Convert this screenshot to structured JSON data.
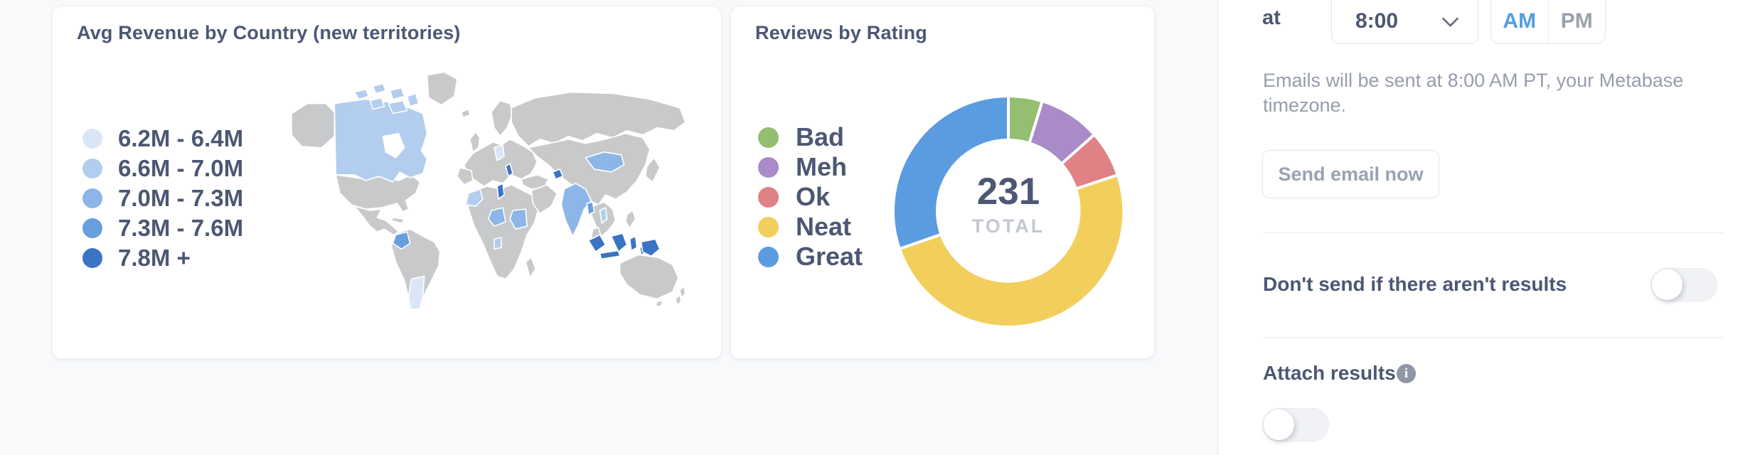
{
  "map_card": {
    "title": "Avg Revenue by Country (new territories)",
    "legend": [
      {
        "label": "6.2M - 6.4M",
        "color": "#D9E6F6"
      },
      {
        "label": "6.6M - 7.0M",
        "color": "#B2CDEE"
      },
      {
        "label": "7.0M - 7.3M",
        "color": "#8DB6E8"
      },
      {
        "label": "7.3M - 7.6M",
        "color": "#679EDE"
      },
      {
        "label": "7.8M +",
        "color": "#3B74C4"
      }
    ],
    "base_land_color": "#C7C9CB",
    "country_bins": {
      "canada": 1,
      "argentina": 0,
      "colombia": 3,
      "germany": 0,
      "croatia": 4,
      "azerbaijan": 4,
      "morocco": 1,
      "tunisia": 4,
      "niger": 2,
      "sudan": 2,
      "gabon": 1,
      "mongolia": 2,
      "india": 2,
      "bangladesh": 3,
      "laos": 1,
      "indonesia": 4,
      "papua_new_guinea": 4
    }
  },
  "donut_card": {
    "title": "Reviews by Rating",
    "total_value": "231",
    "total_label": "TOTAL"
  },
  "chart_data": [
    {
      "type": "heatmap",
      "subtype": "world-choropleth",
      "title": "Avg Revenue by Country (new territories)",
      "legend_position": "left",
      "bins": [
        "6.2M - 6.4M",
        "6.6M - 7.0M",
        "7.0M - 7.3M",
        "7.3M - 7.6M",
        "7.8M +"
      ],
      "bin_colors": [
        "#D9E6F6",
        "#B2CDEE",
        "#8DB6E8",
        "#679EDE",
        "#3B74C4"
      ],
      "countries": {
        "Canada": "6.6M - 7.0M",
        "Argentina": "6.2M - 6.4M",
        "Colombia": "7.3M - 7.6M",
        "Germany": "6.2M - 6.4M",
        "Croatia": "7.8M +",
        "Azerbaijan": "7.8M +",
        "Morocco": "6.6M - 7.0M",
        "Tunisia": "7.8M +",
        "Niger": "7.0M - 7.3M",
        "Sudan": "7.0M - 7.3M",
        "Gabon": "6.6M - 7.0M",
        "Mongolia": "7.0M - 7.3M",
        "India": "7.0M - 7.3M",
        "Bangladesh": "7.3M - 7.6M",
        "Laos": "6.6M - 7.0M",
        "Indonesia": "7.8M +",
        "Papua New Guinea": "7.8M +"
      }
    },
    {
      "type": "pie",
      "title": "Reviews by Rating",
      "total": 231,
      "center_label": "TOTAL",
      "legend_position": "left",
      "categories": [
        "Bad",
        "Meh",
        "Ok",
        "Neat",
        "Great"
      ],
      "values": [
        11,
        20,
        15,
        115,
        70
      ],
      "colors": [
        "#94BE70",
        "#A88BC8",
        "#DF8185",
        "#F2CF5D",
        "#5B9CE1"
      ],
      "donut": true,
      "start_angle_deg": 0,
      "direction": "clockwise"
    }
  ],
  "sidebar": {
    "at_label": "at",
    "time_select": {
      "value": "8:00"
    },
    "meridiem": {
      "options": [
        "AM",
        "PM"
      ],
      "selected": "AM",
      "selected_color": "#509EE3"
    },
    "email_note": "Emails will be sent at 8:00 AM PT, your Metabase timezone.",
    "send_now_label": "Send email now",
    "dont_send_label": "Don't send if there aren't results",
    "dont_send_enabled": false,
    "attach_label": "Attach results",
    "attach_enabled": false
  }
}
